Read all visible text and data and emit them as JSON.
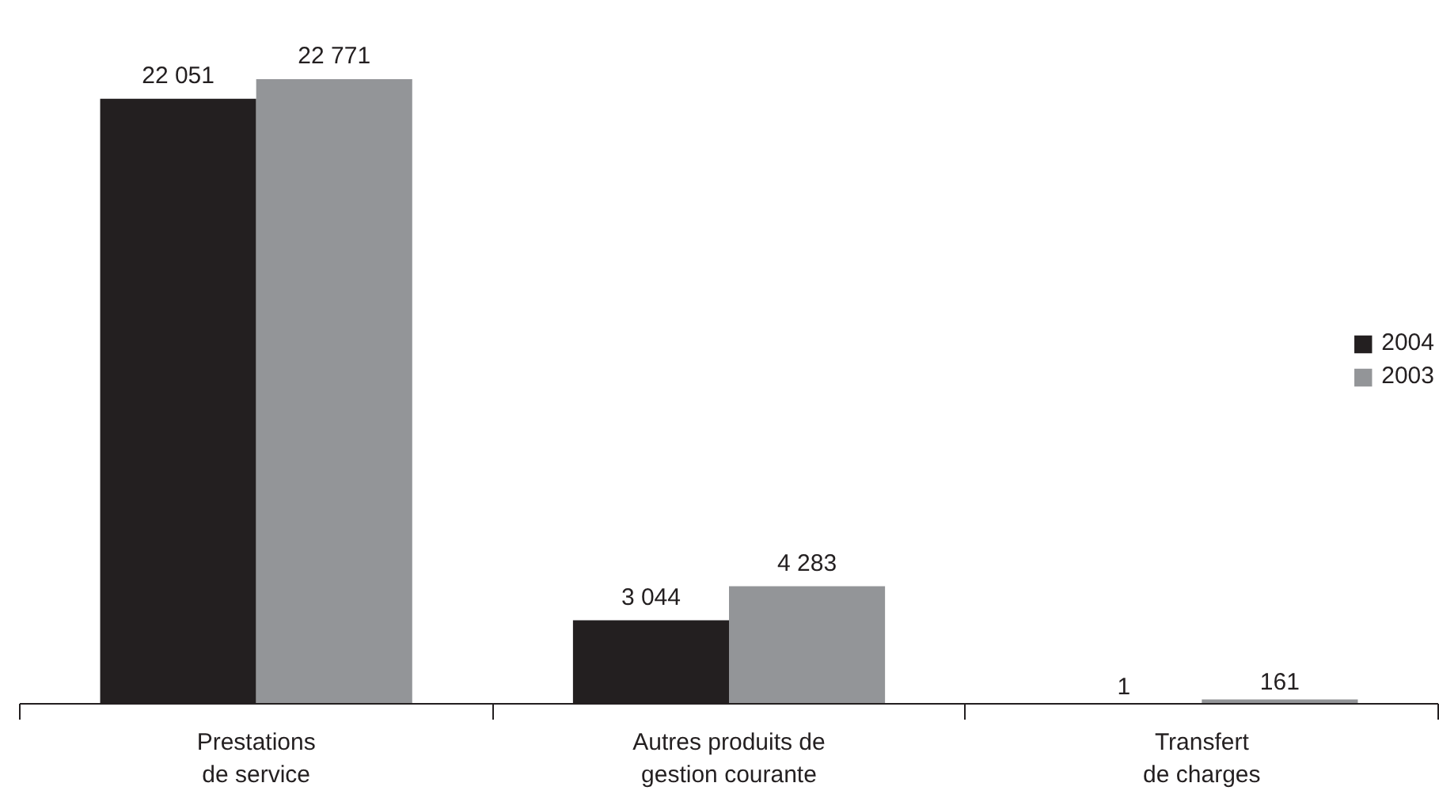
{
  "chart_data": {
    "type": "bar",
    "categories": [
      "Prestations\nde service",
      "Autres produits de\ngestion courante",
      "Transfert\nde charges"
    ],
    "series": [
      {
        "name": "2004",
        "color": "#231f20",
        "values": [
          22051,
          3044,
          1
        ],
        "value_labels": [
          "22 051",
          "3 044",
          "1"
        ]
      },
      {
        "name": "2003",
        "color": "#939598",
        "values": [
          22771,
          4283,
          161
        ],
        "value_labels": [
          "22 771",
          "4 283",
          "161"
        ]
      }
    ],
    "legend": "right",
    "grid": false
  }
}
